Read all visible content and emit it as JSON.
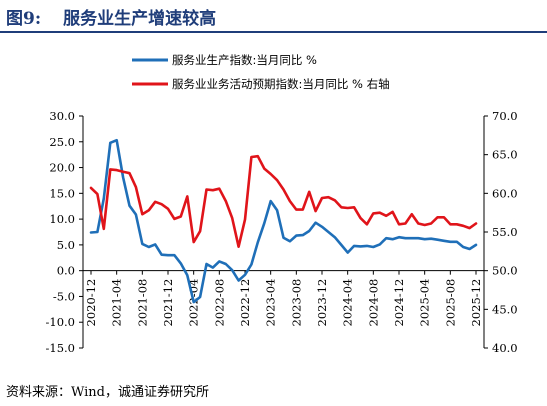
{
  "figure": {
    "number": "图9:",
    "title": "服务业生产增速较高",
    "source": "资料来源：Wind，诚通证券研究所"
  },
  "chart_data": {
    "type": "line",
    "x": [
      "2020-12",
      "2021-01",
      "2021-02",
      "2021-03",
      "2021-04",
      "2021-05",
      "2021-06",
      "2021-07",
      "2021-08",
      "2021-09",
      "2021-10",
      "2021-11",
      "2021-12",
      "2022-01",
      "2022-02",
      "2022-03",
      "2022-04",
      "2022-05",
      "2022-06",
      "2022-07",
      "2022-08",
      "2022-09",
      "2022-10",
      "2022-11",
      "2022-12",
      "2023-01",
      "2023-02",
      "2023-03",
      "2023-04",
      "2023-05",
      "2023-06",
      "2023-07",
      "2023-08",
      "2023-09",
      "2023-10",
      "2023-11",
      "2023-12",
      "2024-01",
      "2024-02",
      "2024-03",
      "2024-04",
      "2024-05",
      "2024-06",
      "2024-07",
      "2024-08",
      "2024-09",
      "2024-10",
      "2024-11",
      "2024-12",
      "2025-01",
      "2025-02",
      "2025-03",
      "2025-04",
      "2025-05",
      "2025-06",
      "2025-07",
      "2025-08",
      "2025-09",
      "2025-10",
      "2025-11",
      "2025-12"
    ],
    "xticks": [
      "2020-12",
      "2021-04",
      "2021-08",
      "2021-12",
      "2022-04",
      "2022-08",
      "2022-12",
      "2023-04",
      "2023-08",
      "2023-12",
      "2024-04",
      "2024-08",
      "2024-12",
      "2025-04",
      "2025-08",
      "2025-12"
    ],
    "series": [
      {
        "name": "服务业生产指数:当月同比  %",
        "axis": "left",
        "color": "#1f6fb8",
        "values": [
          7.4,
          7.5,
          14.0,
          24.8,
          25.3,
          18.1,
          12.6,
          10.9,
          5.2,
          4.6,
          5.1,
          3.1,
          3.0,
          3.0,
          1.4,
          -0.9,
          -6.1,
          -5.1,
          1.3,
          0.6,
          1.8,
          1.3,
          0.1,
          -1.9,
          -0.8,
          1.2,
          5.5,
          9.2,
          13.5,
          11.7,
          6.4,
          5.7,
          6.8,
          6.9,
          7.7,
          9.3,
          8.5,
          7.5,
          6.5,
          5.0,
          3.5,
          4.8,
          4.7,
          4.8,
          4.6,
          5.1,
          6.3,
          6.1,
          6.5,
          6.3,
          6.3,
          6.3,
          6.1,
          6.2,
          6.0,
          5.8,
          5.6,
          5.6,
          4.6,
          4.2,
          5.0
        ]
      },
      {
        "name": "服务业业务活动预期指数:当月同比  %  右轴",
        "axis": "right",
        "color": "#e0141a",
        "values": [
          60.7,
          59.9,
          55.4,
          63.1,
          63.0,
          62.8,
          62.6,
          60.8,
          57.3,
          57.8,
          58.9,
          58.6,
          58.0,
          56.7,
          57.0,
          59.6,
          53.7,
          55.1,
          60.5,
          60.4,
          60.6,
          59.0,
          56.8,
          53.1,
          56.6,
          64.7,
          64.8,
          63.2,
          62.5,
          61.7,
          60.5,
          59.0,
          57.9,
          57.9,
          60.2,
          57.7,
          59.4,
          59.5,
          59.1,
          58.2,
          58.1,
          58.2,
          56.8,
          56.0,
          57.4,
          57.5,
          57.1,
          57.6,
          56.0,
          56.1,
          57.3,
          56.1,
          55.9,
          56.1,
          56.9,
          56.9,
          56.0,
          56.0,
          55.8,
          55.5,
          56.1
        ]
      }
    ],
    "y_left": {
      "min": -15,
      "max": 30,
      "ticks": [
        "30.0",
        "25.0",
        "20.0",
        "15.0",
        "10.0",
        "5.0",
        "0.0",
        "-5.0",
        "-10.0",
        "-15.0"
      ]
    },
    "y_right": {
      "min": 40,
      "max": 70,
      "ticks": [
        "70.0",
        "65.0",
        "60.0",
        "55.0",
        "50.0",
        "45.0",
        "40.0"
      ]
    },
    "legend_position": "top",
    "grid": false
  }
}
